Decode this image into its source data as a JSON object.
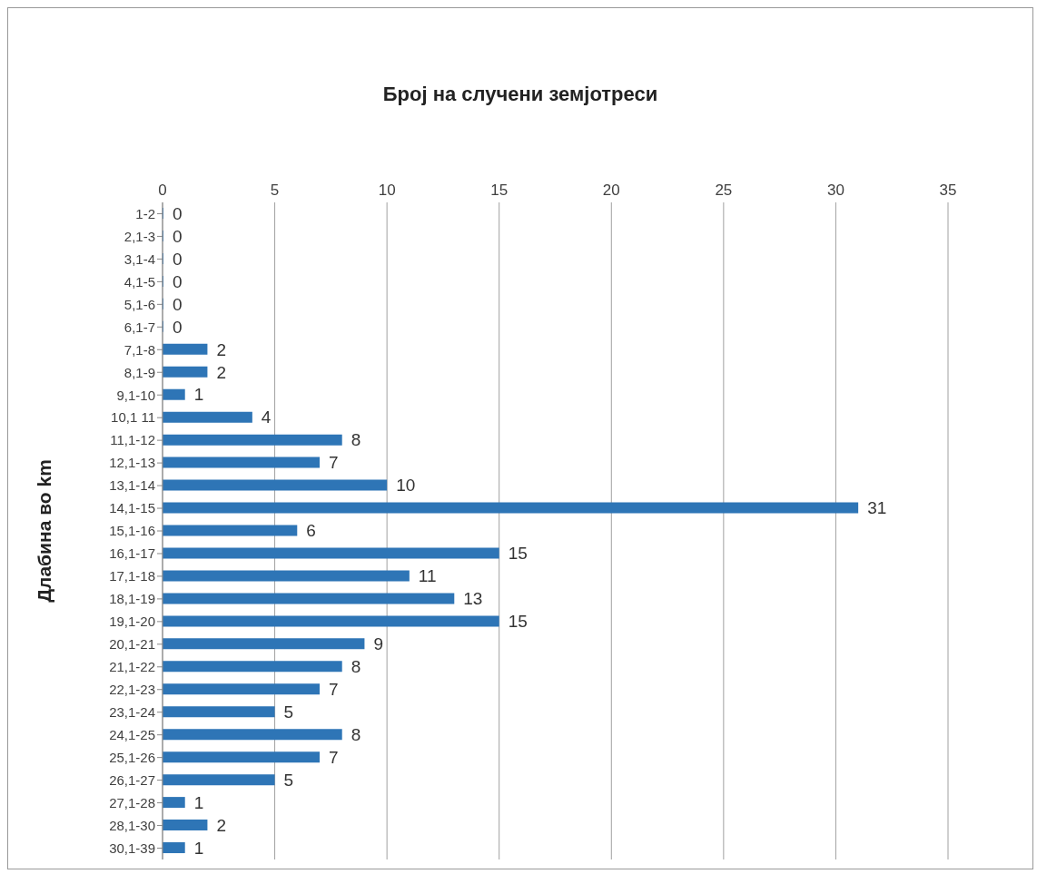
{
  "chart_data": {
    "type": "bar",
    "orientation": "horizontal",
    "title": "Број на случени земјотреси",
    "ylabel": "Длабина во km",
    "categories": [
      "1-2",
      "2,1-3",
      "3,1-4",
      "4,1-5",
      "5,1-6",
      "6,1-7",
      "7,1-8",
      "8,1-9",
      "9,1-10",
      "10,1 11",
      "11,1-12",
      "12,1-13",
      "13,1-14",
      "14,1-15",
      "15,1-16",
      "16,1-17",
      "17,1-18",
      "18,1-19",
      "19,1-20",
      "20,1-21",
      "21,1-22",
      "22,1-23",
      "23,1-24",
      "24,1-25",
      "25,1-26",
      "26,1-27",
      "27,1-28",
      "28,1-30",
      "30,1-39"
    ],
    "values": [
      0,
      0,
      0,
      0,
      0,
      0,
      2,
      2,
      1,
      4,
      8,
      7,
      10,
      31,
      6,
      15,
      11,
      13,
      15,
      9,
      8,
      7,
      5,
      8,
      7,
      5,
      1,
      2,
      1
    ],
    "color": "#2e75b6",
    "xlim": [
      0,
      35
    ],
    "xticks": [
      0,
      5,
      10,
      15,
      20,
      25,
      30,
      35
    ],
    "grid": "x",
    "data_labels": true,
    "legend": false
  }
}
